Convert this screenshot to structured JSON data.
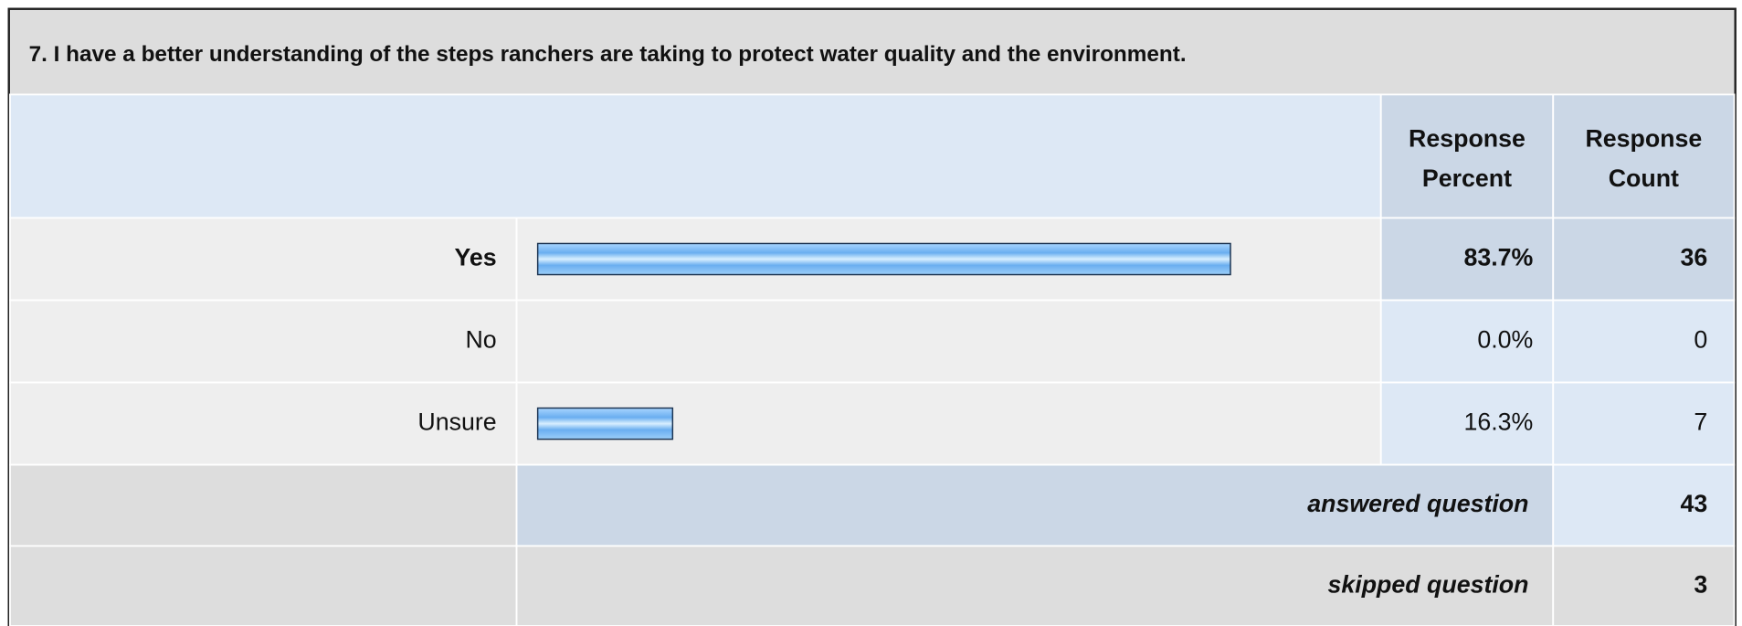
{
  "chart_data": {
    "type": "bar",
    "title": "7. I have a better understanding of the steps ranchers are taking to protect water quality and the environment.",
    "column_headers": [
      [
        "Response",
        "Percent"
      ],
      [
        "Response",
        "Count"
      ]
    ],
    "categories": [
      "Yes",
      "No",
      "Unsure"
    ],
    "values": [
      83.7,
      0.0,
      16.3
    ],
    "value_labels": [
      "83.7%",
      "0.0%",
      "16.3%"
    ],
    "counts": [
      36,
      0,
      7
    ],
    "xlim": [
      0,
      100
    ],
    "color": "#7dbdf7",
    "answered": {
      "label": "answered question",
      "value": 43
    },
    "skipped": {
      "label": "skipped question",
      "value": 3
    }
  }
}
